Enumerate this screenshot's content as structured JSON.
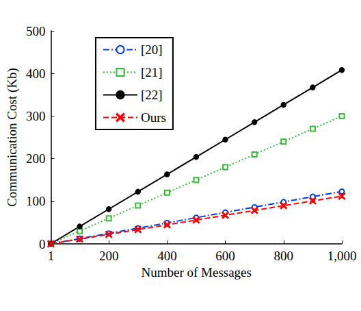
{
  "chart_data": {
    "type": "line",
    "x_label": "Number of Messages",
    "y_label": "Communication Cost (Kb)",
    "x": [
      1,
      100,
      200,
      300,
      400,
      500,
      600,
      700,
      800,
      900,
      1000
    ],
    "series": [
      {
        "name": "[20]",
        "color": "#0040e0",
        "marker": "open_circle",
        "line_style": "dashdot",
        "values": [
          0.12,
          12.3,
          24.6,
          36.9,
          49.2,
          61.5,
          73.8,
          86.1,
          98.4,
          110.7,
          123
        ]
      },
      {
        "name": "[21]",
        "color": "#33bb33",
        "marker": "open_square",
        "line_style": "dotted",
        "values": [
          0.3,
          30,
          60,
          90,
          120,
          150,
          180,
          210,
          240,
          270,
          300
        ]
      },
      {
        "name": "[22]",
        "color": "#000000",
        "marker": "dot",
        "line_style": "solid",
        "values": [
          0.41,
          40.8,
          81.6,
          122.4,
          163.2,
          204,
          244.8,
          285.6,
          326.4,
          367.2,
          408
        ]
      },
      {
        "name": "Ours",
        "color": "#ff0000",
        "marker": "x",
        "line_style": "dashed",
        "values": [
          0.11,
          11.2,
          22.4,
          33.6,
          44.8,
          56,
          67.2,
          78.4,
          89.6,
          100.8,
          112
        ]
      }
    ],
    "xlim": [
      1,
      1000
    ],
    "xticks": [
      1,
      200,
      400,
      600,
      800,
      1000
    ],
    "ylim": [
      0,
      500
    ],
    "yticks": [
      0,
      100,
      200,
      300,
      400,
      500
    ],
    "grid": false,
    "legend": "upper left"
  }
}
